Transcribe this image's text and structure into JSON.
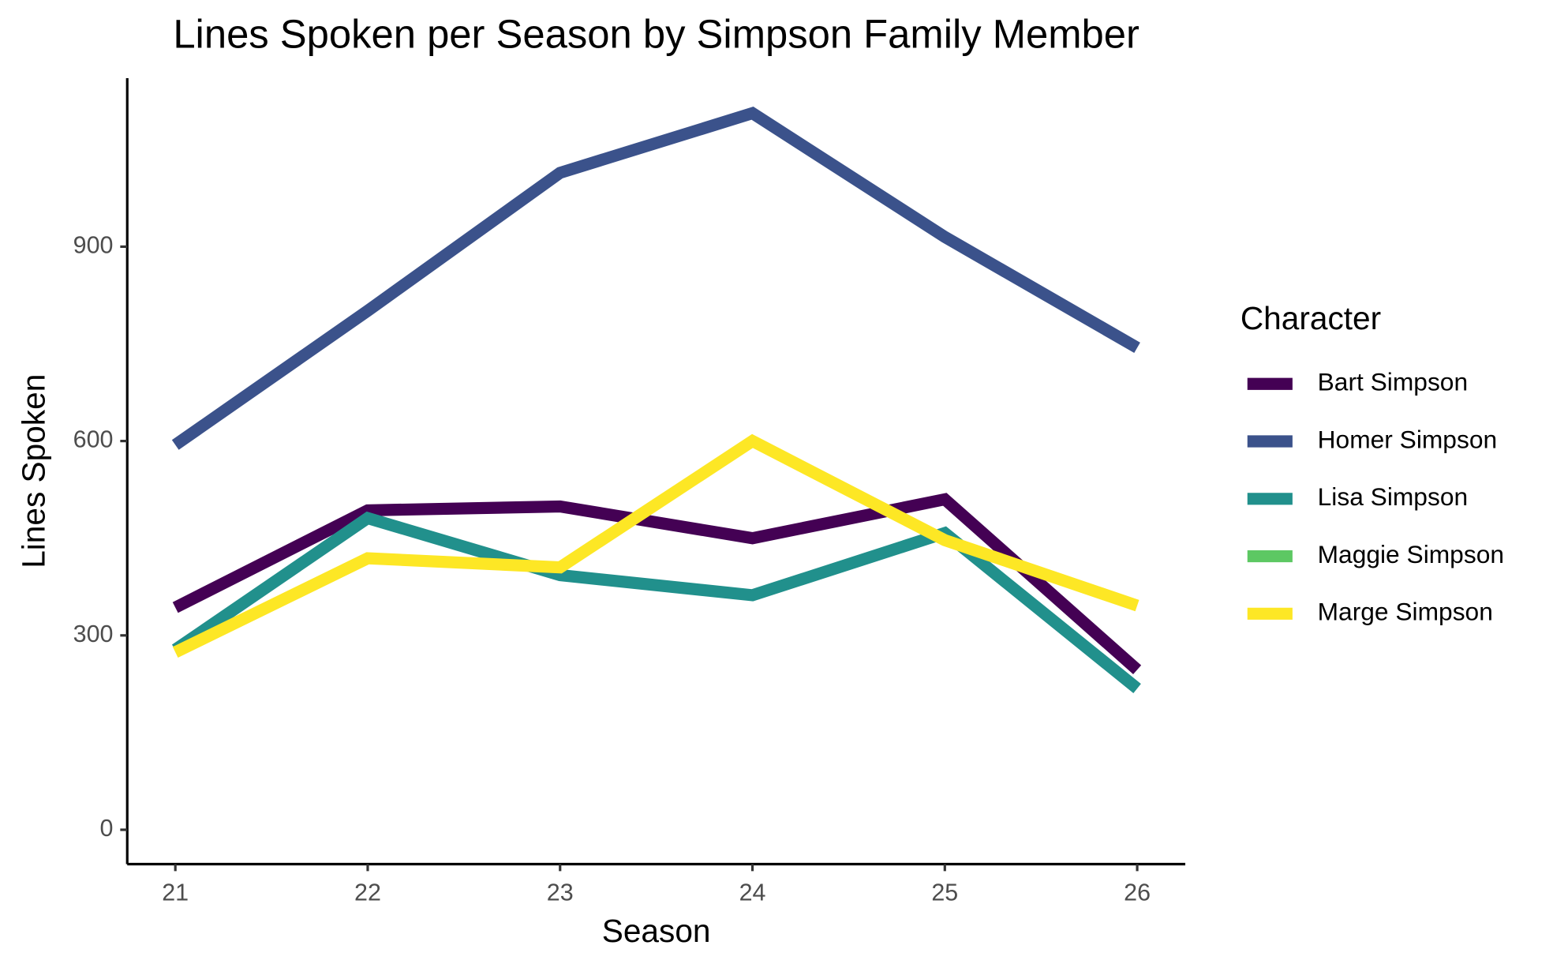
{
  "chart_data": {
    "type": "line",
    "title": "Lines Spoken per Season by Simpson Family Member",
    "xlabel": "Season",
    "ylabel": "Lines Spoken",
    "legend_title": "Character",
    "x": [
      21,
      22,
      23,
      24,
      25,
      26
    ],
    "series": [
      {
        "name": "Bart Simpson",
        "color": "#440154",
        "values": [
          343,
          493,
          499,
          450,
          510,
          247
        ]
      },
      {
        "name": "Homer Simpson",
        "color": "#3b528b",
        "values": [
          594,
          801,
          1014,
          1106,
          915,
          744
        ]
      },
      {
        "name": "Lisa Simpson",
        "color": "#21908c",
        "values": [
          278,
          481,
          393,
          362,
          458,
          218
        ]
      },
      {
        "name": "Maggie Simpson",
        "color": "#5dc863",
        "values": [
          null,
          null,
          null,
          null,
          null,
          null
        ]
      },
      {
        "name": "Marge Simpson",
        "color": "#fde725",
        "values": [
          274,
          419,
          405,
          600,
          447,
          346
        ]
      }
    ],
    "xlim": [
      20.75,
      26.25
    ],
    "xticks": [
      21,
      22,
      23,
      24,
      25,
      26
    ],
    "ylim": [
      -53,
      1160
    ],
    "yticks": [
      0,
      300,
      600,
      900
    ],
    "grid": false,
    "legend": "right"
  }
}
